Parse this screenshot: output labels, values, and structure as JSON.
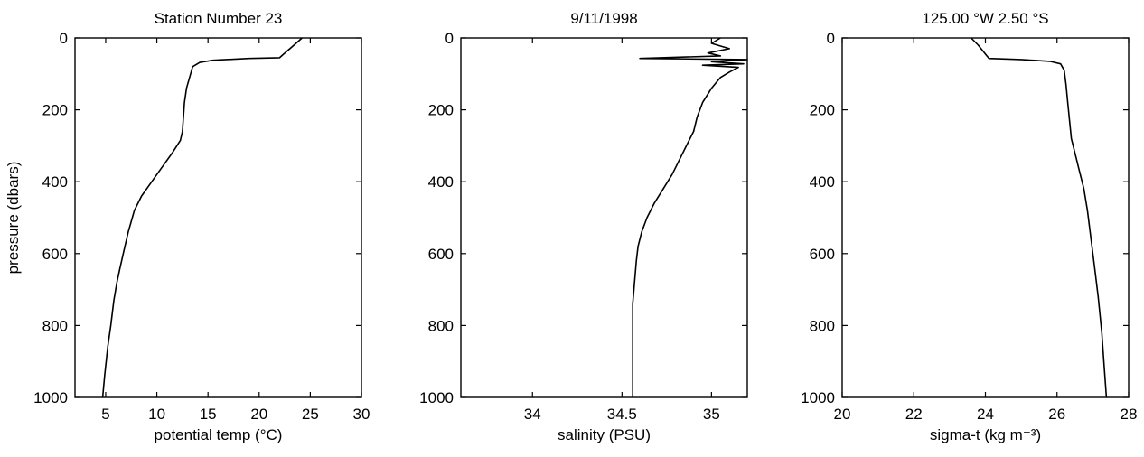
{
  "chart_data": [
    {
      "type": "line",
      "title": "Station Number 23",
      "xlabel": "potential temp (°C)",
      "ylabel": "pressure (dbars)",
      "xlim": [
        2,
        30
      ],
      "ylim": [
        1000,
        0
      ],
      "y_inverted": true,
      "xticks": [
        5,
        10,
        15,
        20,
        25,
        30
      ],
      "yticks": [
        0,
        200,
        400,
        600,
        800,
        1000
      ],
      "grid": false,
      "series": [
        {
          "x": [
            24.2,
            23.8,
            23.2,
            22.6,
            22.0,
            19.0,
            15.5,
            14.2,
            13.5,
            13.2,
            12.9,
            12.7,
            12.6,
            12.5,
            12.3,
            11.5,
            10.5,
            9.5,
            8.5,
            7.8,
            7.2,
            6.8,
            6.4,
            6.1,
            5.8,
            5.5,
            5.2,
            4.9,
            4.7
          ],
          "y": [
            0,
            10,
            25,
            40,
            55,
            57,
            62,
            68,
            80,
            110,
            140,
            180,
            220,
            260,
            285,
            320,
            360,
            400,
            440,
            480,
            540,
            590,
            640,
            680,
            730,
            800,
            860,
            940,
            1000
          ]
        }
      ]
    },
    {
      "type": "line",
      "title": "9/11/1998",
      "xlabel": "salinity (PSU)",
      "ylabel": "",
      "xlim": [
        33.6,
        35.2
      ],
      "ylim": [
        1000,
        0
      ],
      "y_inverted": true,
      "xticks": [
        34,
        34.5,
        35
      ],
      "yticks": [
        0,
        200,
        400,
        600,
        800,
        1000
      ],
      "grid": false,
      "series": [
        {
          "x": [
            35.05,
            35.0,
            35.1,
            34.98,
            35.05,
            34.6,
            35.2,
            35.0,
            35.18,
            34.95,
            35.15,
            35.1,
            35.05,
            35.0,
            34.95,
            34.92,
            34.9,
            34.86,
            34.82,
            34.78,
            34.73,
            34.68,
            34.64,
            34.61,
            34.59,
            34.58,
            34.57,
            34.56,
            34.56,
            34.56,
            34.56,
            34.56,
            34.56
          ],
          "y": [
            0,
            15,
            30,
            42,
            50,
            57,
            60,
            66,
            72,
            76,
            82,
            95,
            110,
            140,
            180,
            220,
            260,
            300,
            340,
            380,
            420,
            460,
            500,
            540,
            580,
            620,
            680,
            740,
            800,
            860,
            920,
            960,
            1000
          ]
        }
      ]
    },
    {
      "type": "line",
      "title": "125.00 °W  2.50 °S",
      "xlabel": "sigma-t (kg m⁻³)",
      "ylabel": "",
      "xlim": [
        20,
        28
      ],
      "ylim": [
        1000,
        0
      ],
      "y_inverted": true,
      "xticks": [
        20,
        22,
        24,
        26,
        28
      ],
      "yticks": [
        0,
        200,
        400,
        600,
        800,
        1000
      ],
      "grid": false,
      "series": [
        {
          "x": [
            23.6,
            23.8,
            24.0,
            24.1,
            25.0,
            25.8,
            26.1,
            26.2,
            26.25,
            26.3,
            26.35,
            26.4,
            26.5,
            26.6,
            26.75,
            26.85,
            26.95,
            27.05,
            27.15,
            27.25,
            27.32,
            27.38
          ],
          "y": [
            0,
            20,
            45,
            57,
            60,
            65,
            72,
            90,
            130,
            180,
            230,
            280,
            320,
            360,
            420,
            480,
            560,
            640,
            720,
            820,
            920,
            1000
          ]
        }
      ]
    }
  ]
}
